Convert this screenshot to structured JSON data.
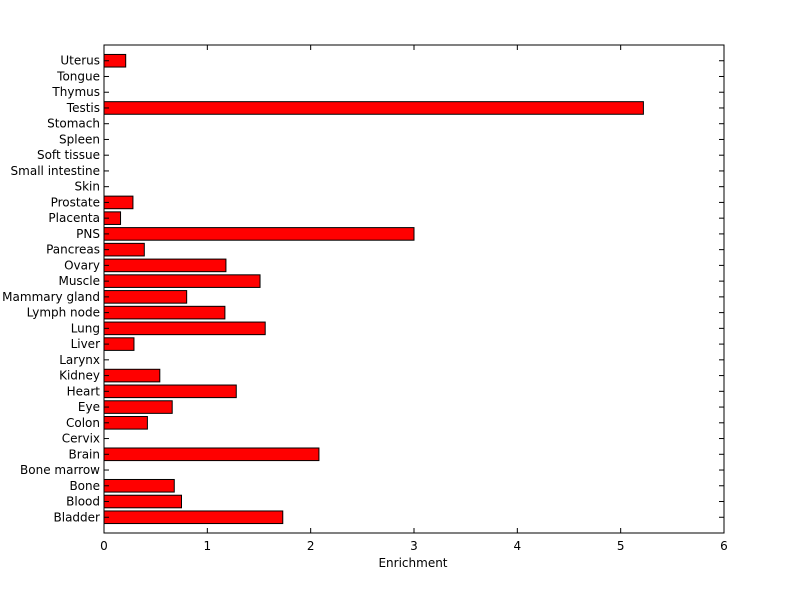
{
  "chart_data": {
    "type": "bar",
    "orientation": "horizontal",
    "categories": [
      "Bladder",
      "Blood",
      "Bone",
      "Bone marrow",
      "Brain",
      "Cervix",
      "Colon",
      "Eye",
      "Heart",
      "Kidney",
      "Larynx",
      "Liver",
      "Lung",
      "Lymph node",
      "Mammary gland",
      "Muscle",
      "Ovary",
      "Pancreas",
      "PNS",
      "Placenta",
      "Prostate",
      "Skin",
      "Small intestine",
      "Soft tissue",
      "Spleen",
      "Stomach",
      "Testis",
      "Thymus",
      "Tongue",
      "Uterus"
    ],
    "values": [
      1.73,
      0.75,
      0.68,
      0,
      2.08,
      0,
      0.42,
      0.66,
      1.28,
      0.54,
      0,
      0.29,
      1.56,
      1.17,
      0.8,
      1.51,
      1.18,
      0.39,
      3.0,
      0.16,
      0.28,
      0,
      0,
      0,
      0,
      0,
      5.22,
      0,
      0,
      0.21
    ],
    "xlabel": "Enrichment",
    "ylabel": "",
    "title": "",
    "xlim": [
      0,
      6
    ],
    "xticks": [
      0,
      1,
      2,
      3,
      4,
      5,
      6
    ],
    "grid": false,
    "legend": "none",
    "bar_color": "#ff0000",
    "edge_color": "#000000"
  }
}
